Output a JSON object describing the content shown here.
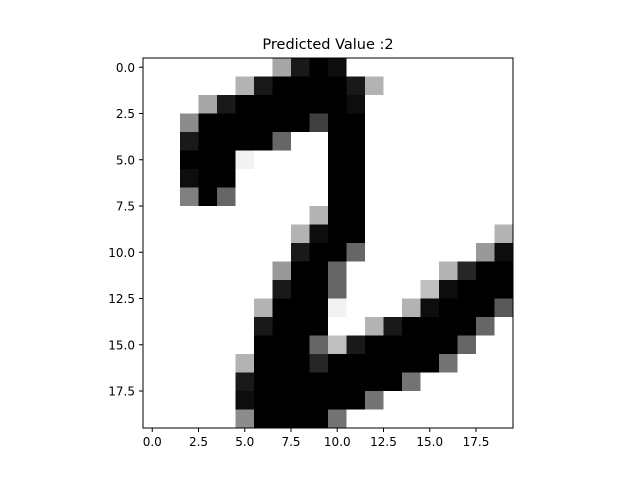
{
  "chart_data": {
    "type": "heatmap",
    "title": "Predicted Value :2",
    "colormap": "gray_r",
    "xlabel": "",
    "ylabel": "",
    "xlim": [
      -0.5,
      19.5
    ],
    "ylim": [
      19.5,
      -0.5
    ],
    "x_ticks": [
      0.0,
      2.5,
      5.0,
      7.5,
      10.0,
      12.5,
      15.0,
      17.5
    ],
    "y_ticks": [
      0.0,
      2.5,
      5.0,
      7.5,
      10.0,
      12.5,
      15.0,
      17.5
    ],
    "x_tick_labels": [
      "0.0",
      "2.5",
      "5.0",
      "7.5",
      "10.0",
      "12.5",
      "15.0",
      "17.5"
    ],
    "y_tick_labels": [
      "0.0",
      "2.5",
      "5.0",
      "7.5",
      "10.0",
      "12.5",
      "15.0",
      "17.5"
    ],
    "grid": false,
    "values": [
      [
        0.0,
        0.0,
        0.0,
        0.0,
        0.0,
        0.0,
        0.0,
        0.35,
        0.9,
        1.0,
        0.95,
        0.0,
        0.0,
        0.0,
        0.0,
        0.0,
        0.0,
        0.0,
        0.0,
        0.0
      ],
      [
        0.0,
        0.0,
        0.0,
        0.0,
        0.0,
        0.3,
        0.9,
        1.0,
        1.0,
        1.0,
        1.0,
        0.9,
        0.3,
        0.0,
        0.0,
        0.0,
        0.0,
        0.0,
        0.0,
        0.0
      ],
      [
        0.0,
        0.0,
        0.0,
        0.35,
        0.9,
        1.0,
        1.0,
        1.0,
        1.0,
        1.0,
        1.0,
        0.95,
        0.0,
        0.0,
        0.0,
        0.0,
        0.0,
        0.0,
        0.0,
        0.0
      ],
      [
        0.0,
        0.0,
        0.45,
        1.0,
        1.0,
        1.0,
        1.0,
        1.0,
        1.0,
        0.75,
        1.0,
        1.0,
        0.0,
        0.0,
        0.0,
        0.0,
        0.0,
        0.0,
        0.0,
        0.0
      ],
      [
        0.0,
        0.0,
        0.9,
        1.0,
        1.0,
        1.0,
        1.0,
        0.6,
        0.0,
        0.0,
        1.0,
        1.0,
        0.0,
        0.0,
        0.0,
        0.0,
        0.0,
        0.0,
        0.0,
        0.0
      ],
      [
        0.0,
        0.0,
        1.0,
        1.0,
        1.0,
        0.05,
        0.0,
        0.0,
        0.0,
        0.0,
        1.0,
        1.0,
        0.0,
        0.0,
        0.0,
        0.0,
        0.0,
        0.0,
        0.0,
        0.0
      ],
      [
        0.0,
        0.0,
        0.95,
        1.0,
        1.0,
        0.0,
        0.0,
        0.0,
        0.0,
        0.0,
        1.0,
        1.0,
        0.0,
        0.0,
        0.0,
        0.0,
        0.0,
        0.0,
        0.0,
        0.0
      ],
      [
        0.0,
        0.0,
        0.5,
        1.0,
        0.6,
        0.0,
        0.0,
        0.0,
        0.0,
        0.0,
        1.0,
        1.0,
        0.0,
        0.0,
        0.0,
        0.0,
        0.0,
        0.0,
        0.0,
        0.0
      ],
      [
        0.0,
        0.0,
        0.0,
        0.0,
        0.0,
        0.0,
        0.0,
        0.0,
        0.0,
        0.3,
        1.0,
        1.0,
        0.0,
        0.0,
        0.0,
        0.0,
        0.0,
        0.0,
        0.0,
        0.0
      ],
      [
        0.0,
        0.0,
        0.0,
        0.0,
        0.0,
        0.0,
        0.0,
        0.0,
        0.3,
        0.95,
        1.0,
        1.0,
        0.0,
        0.0,
        0.0,
        0.0,
        0.0,
        0.0,
        0.0,
        0.3
      ],
      [
        0.0,
        0.0,
        0.0,
        0.0,
        0.0,
        0.0,
        0.0,
        0.0,
        0.9,
        1.0,
        1.0,
        0.6,
        0.0,
        0.0,
        0.0,
        0.0,
        0.0,
        0.0,
        0.4,
        0.95
      ],
      [
        0.0,
        0.0,
        0.0,
        0.0,
        0.0,
        0.0,
        0.0,
        0.4,
        1.0,
        1.0,
        0.6,
        0.0,
        0.0,
        0.0,
        0.0,
        0.0,
        0.3,
        0.85,
        1.0,
        1.0
      ],
      [
        0.0,
        0.0,
        0.0,
        0.0,
        0.0,
        0.0,
        0.0,
        0.9,
        1.0,
        1.0,
        0.6,
        0.0,
        0.0,
        0.0,
        0.0,
        0.25,
        0.95,
        1.0,
        1.0,
        1.0
      ],
      [
        0.0,
        0.0,
        0.0,
        0.0,
        0.0,
        0.0,
        0.3,
        1.0,
        1.0,
        1.0,
        0.05,
        0.0,
        0.0,
        0.0,
        0.3,
        0.95,
        1.0,
        1.0,
        1.0,
        0.65
      ],
      [
        0.0,
        0.0,
        0.0,
        0.0,
        0.0,
        0.0,
        0.9,
        1.0,
        1.0,
        1.0,
        0.0,
        0.0,
        0.3,
        0.9,
        1.0,
        1.0,
        1.0,
        1.0,
        0.6,
        0.0
      ],
      [
        0.0,
        0.0,
        0.0,
        0.0,
        0.0,
        0.0,
        1.0,
        1.0,
        1.0,
        0.6,
        0.25,
        0.9,
        1.0,
        1.0,
        1.0,
        1.0,
        1.0,
        0.6,
        0.0,
        0.0
      ],
      [
        0.0,
        0.0,
        0.0,
        0.0,
        0.0,
        0.3,
        1.0,
        1.0,
        1.0,
        0.85,
        1.0,
        1.0,
        1.0,
        1.0,
        1.0,
        1.0,
        0.55,
        0.0,
        0.0,
        0.0
      ],
      [
        0.0,
        0.0,
        0.0,
        0.0,
        0.0,
        0.9,
        1.0,
        1.0,
        1.0,
        1.0,
        1.0,
        1.0,
        1.0,
        1.0,
        0.55,
        0.0,
        0.0,
        0.0,
        0.0,
        0.0
      ],
      [
        0.0,
        0.0,
        0.0,
        0.0,
        0.0,
        0.95,
        1.0,
        1.0,
        1.0,
        1.0,
        1.0,
        1.0,
        0.55,
        0.0,
        0.0,
        0.0,
        0.0,
        0.0,
        0.0,
        0.0
      ],
      [
        0.0,
        0.0,
        0.0,
        0.0,
        0.0,
        0.45,
        1.0,
        1.0,
        1.0,
        1.0,
        0.55,
        0.0,
        0.0,
        0.0,
        0.0,
        0.0,
        0.0,
        0.0,
        0.0,
        0.0
      ]
    ]
  }
}
